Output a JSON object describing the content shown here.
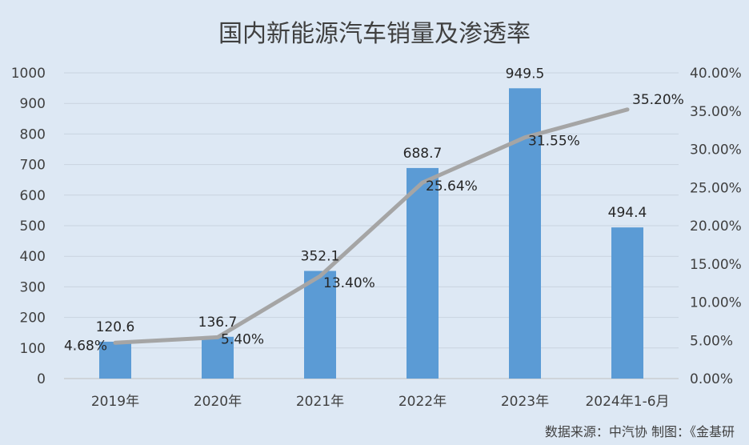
{
  "chart_data": {
    "type": "bar",
    "title": "国内新能源汽车销量及渗透率",
    "categories": [
      "2019年",
      "2020年",
      "2021年",
      "2022年",
      "2023年",
      "2024年1-6月"
    ],
    "series": [
      {
        "type": "bar",
        "axis": "left",
        "values": [
          120.6,
          136.7,
          352.1,
          688.7,
          949.5,
          494.4
        ],
        "labels": [
          "120.6",
          "136.7",
          "352.1",
          "688.7",
          "949.5",
          "494.4"
        ],
        "color": "#5b9bd5"
      },
      {
        "type": "line",
        "axis": "right",
        "values": [
          4.68,
          5.4,
          13.4,
          25.64,
          31.55,
          35.2
        ],
        "labels": [
          "4.68%",
          "5.40%",
          "13.40%",
          "25.64%",
          "31.55%",
          "35.20%"
        ],
        "color": "#a5a5a5"
      }
    ],
    "y_left": {
      "range": [
        0,
        1000
      ],
      "ticks": [
        "0",
        "100",
        "200",
        "300",
        "400",
        "500",
        "600",
        "700",
        "800",
        "900",
        "1000"
      ]
    },
    "y_right": {
      "range": [
        0,
        40
      ],
      "ticks": [
        "0.00%",
        "5.00%",
        "10.00%",
        "15.00%",
        "20.00%",
        "25.00%",
        "30.00%",
        "35.00%",
        "40.00%"
      ]
    },
    "grid": true,
    "legend": "none",
    "source_note": "数据来源：中汽协   制图：《金基研"
  }
}
